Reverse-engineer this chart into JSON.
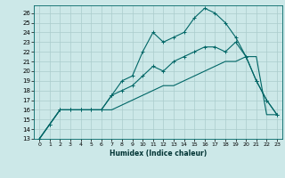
{
  "xlabel": "Humidex (Indice chaleur)",
  "ylabel": "",
  "xlim": [
    -0.5,
    23.5
  ],
  "ylim": [
    13,
    26.8
  ],
  "yticks": [
    13,
    14,
    15,
    16,
    17,
    18,
    19,
    20,
    21,
    22,
    23,
    24,
    25,
    26
  ],
  "xticks": [
    0,
    1,
    2,
    3,
    4,
    5,
    6,
    7,
    8,
    9,
    10,
    11,
    12,
    13,
    14,
    15,
    16,
    17,
    18,
    19,
    20,
    21,
    22,
    23
  ],
  "bg_color": "#cce8e8",
  "grid_color": "#aacccc",
  "line_color": "#006666",
  "line1_x": [
    0,
    1,
    2,
    3,
    4,
    5,
    6,
    7,
    8,
    9,
    10,
    11,
    12,
    13,
    14,
    15,
    16,
    17,
    18,
    19,
    20,
    21,
    22,
    23
  ],
  "line1_y": [
    13,
    14.5,
    16,
    16,
    16,
    16,
    16,
    17.5,
    19,
    19.5,
    22,
    24,
    23,
    23.5,
    24,
    25.5,
    26.5,
    26,
    25,
    23.5,
    21.5,
    19,
    17,
    15.5
  ],
  "line2_x": [
    0,
    1,
    2,
    3,
    4,
    5,
    6,
    7,
    8,
    9,
    10,
    11,
    12,
    13,
    14,
    15,
    16,
    17,
    18,
    19,
    20,
    21,
    22,
    23
  ],
  "line2_y": [
    13,
    14.5,
    16,
    16,
    16,
    16,
    16,
    17.5,
    18,
    18.5,
    19.5,
    20.5,
    20,
    21,
    21.5,
    22,
    22.5,
    22.5,
    22,
    23,
    21.5,
    19,
    17,
    15.5
  ],
  "line3_x": [
    0,
    2,
    3,
    4,
    5,
    6,
    7,
    8,
    9,
    10,
    11,
    12,
    13,
    14,
    15,
    16,
    17,
    18,
    19,
    20,
    21,
    22,
    23
  ],
  "line3_y": [
    13,
    16,
    16,
    16,
    16,
    16,
    16,
    16.5,
    17,
    17.5,
    18,
    18.5,
    18.5,
    19,
    19.5,
    20,
    20.5,
    21,
    21,
    21.5,
    21.5,
    15.5,
    15.5
  ]
}
